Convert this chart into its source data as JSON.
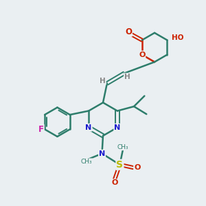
{
  "background_color": "#eaeff2",
  "bond_color": "#2d7d6b",
  "N_color": "#1a1acc",
  "O_color": "#cc2200",
  "F_color": "#cc22aa",
  "S_color": "#bbbb00",
  "H_color": "#888888",
  "figsize": [
    3.0,
    3.0
  ],
  "dpi": 100,
  "xlim": [
    0,
    10
  ],
  "ylim": [
    0,
    10
  ]
}
